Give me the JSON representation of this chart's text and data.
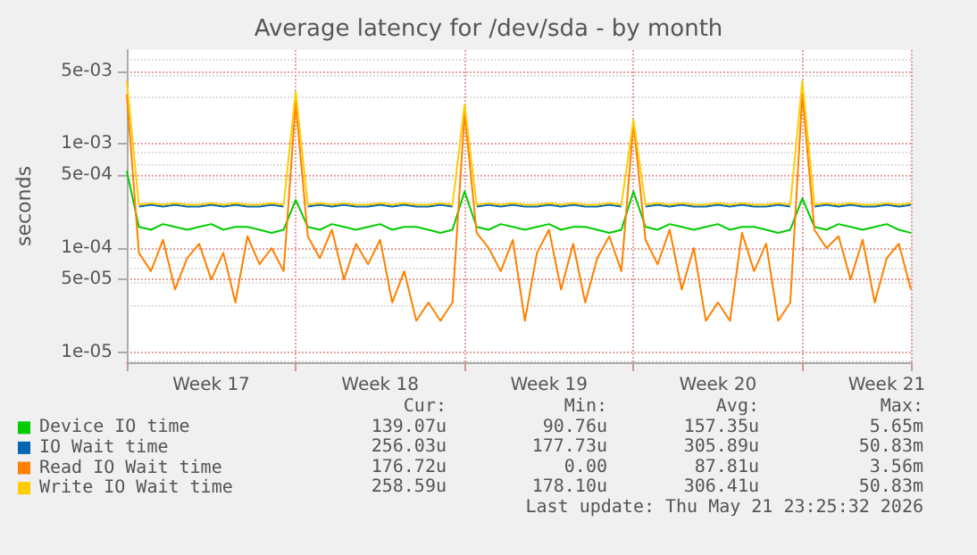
{
  "chart_data": {
    "type": "line",
    "title": "Average latency for /dev/sda - by month",
    "ylabel": "seconds",
    "categories": [
      null,
      null,
      null,
      null,
      null,
      null,
      null,
      "Week 17",
      null,
      null,
      null,
      null,
      null,
      null,
      null,
      null,
      null,
      null,
      null,
      null,
      null,
      "Week 18",
      null,
      null,
      null,
      null,
      null,
      null,
      null,
      null,
      null,
      null,
      null,
      null,
      null,
      "Week 19",
      null,
      null,
      null,
      null,
      null,
      null,
      null,
      null,
      null,
      null,
      null,
      null,
      null,
      "Week 20",
      null,
      null,
      null,
      null,
      null,
      null,
      null,
      null,
      null,
      null,
      null,
      null,
      null,
      "Week 21",
      null,
      null
    ],
    "series": [
      {
        "name": "Device IO time",
        "color": "#00cc00",
        "values": [
          0.00055,
          0.00016,
          0.00015,
          0.00017,
          0.00016,
          0.00015,
          0.00016,
          0.00017,
          0.00015,
          0.00016,
          0.00016,
          0.00015,
          0.00014,
          0.00015,
          0.00029,
          0.00016,
          0.00015,
          0.00017,
          0.00016,
          0.00015,
          0.00016,
          0.00017,
          0.00015,
          0.00016,
          0.00016,
          0.00015,
          0.00014,
          0.00015,
          0.00035,
          0.00016,
          0.00015,
          0.00017,
          0.00016,
          0.00015,
          0.00016,
          0.00017,
          0.00015,
          0.00016,
          0.00016,
          0.00015,
          0.00014,
          0.00015,
          0.00035,
          0.00016,
          0.00015,
          0.00017,
          0.00016,
          0.00015,
          0.00016,
          0.00017,
          0.00015,
          0.00016,
          0.00016,
          0.00015,
          0.00014,
          0.00015,
          0.0003,
          0.00016,
          0.00015,
          0.00017,
          0.00016,
          0.00015,
          0.00016,
          0.00017,
          0.00015,
          0.00014
        ]
      },
      {
        "name": "IO Wait time",
        "color": "#0066b3",
        "values": [
          null,
          0.00025,
          0.00026,
          0.00025,
          0.00026,
          0.00025,
          0.00025,
          0.00026,
          0.00025,
          0.00026,
          0.00025,
          0.00025,
          0.00026,
          0.00025,
          null,
          0.00025,
          0.00026,
          0.00025,
          0.00026,
          0.00025,
          0.00025,
          0.00026,
          0.00025,
          0.00026,
          0.00025,
          0.00025,
          0.00026,
          0.00025,
          null,
          0.00025,
          0.00026,
          0.00025,
          0.00026,
          0.00025,
          0.00025,
          0.00026,
          0.00025,
          0.00026,
          0.00025,
          0.00025,
          0.00026,
          0.00025,
          null,
          0.00025,
          0.00026,
          0.00025,
          0.00026,
          0.00025,
          0.00025,
          0.00026,
          0.00025,
          0.00026,
          0.00025,
          0.00025,
          0.00026,
          0.00025,
          null,
          0.00025,
          0.00026,
          0.00025,
          0.00026,
          0.00025,
          0.00025,
          0.00026,
          0.00025,
          0.00026
        ]
      },
      {
        "name": "Read IO Wait time",
        "color": "#ff8000",
        "values": [
          0.003,
          9e-05,
          6e-05,
          0.00012,
          4e-05,
          8e-05,
          0.00011,
          5e-05,
          9e-05,
          3e-05,
          0.00013,
          7e-05,
          0.0001,
          6e-05,
          0.0025,
          0.00013,
          8e-05,
          0.00015,
          5e-05,
          0.00011,
          7e-05,
          0.00012,
          3e-05,
          6e-05,
          2e-05,
          3e-05,
          2e-05,
          3e-05,
          0.002,
          0.00014,
          0.0001,
          6e-05,
          0.00012,
          2e-05,
          9e-05,
          0.00015,
          4e-05,
          0.00011,
          3e-05,
          8e-05,
          0.00013,
          6e-05,
          0.0016,
          0.00012,
          7e-05,
          0.00015,
          4e-05,
          0.0001,
          2e-05,
          3e-05,
          2e-05,
          0.00014,
          6e-05,
          0.00011,
          2e-05,
          3e-05,
          0.003,
          0.00015,
          0.0001,
          0.00013,
          5e-05,
          0.00012,
          3e-05,
          8e-05,
          0.00011,
          4e-05
        ]
      },
      {
        "name": "Write IO Wait time",
        "color": "#ffcc00",
        "values": [
          0.004,
          0.00026,
          0.00027,
          0.00026,
          0.00027,
          0.00026,
          0.00026,
          0.00027,
          0.00026,
          0.00027,
          0.00026,
          0.00026,
          0.00027,
          0.00026,
          0.0032,
          0.00026,
          0.00027,
          0.00026,
          0.00027,
          0.00026,
          0.00026,
          0.00027,
          0.00026,
          0.00027,
          0.00026,
          0.00026,
          0.00027,
          0.00026,
          0.0024,
          0.00026,
          0.00027,
          0.00026,
          0.00027,
          0.00026,
          0.00026,
          0.00027,
          0.00026,
          0.00027,
          0.00026,
          0.00026,
          0.00027,
          0.00026,
          0.0017,
          0.00026,
          0.00027,
          0.00026,
          0.00027,
          0.00026,
          0.00026,
          0.00027,
          0.00026,
          0.00027,
          0.00026,
          0.00026,
          0.00027,
          0.00026,
          0.004,
          0.00026,
          0.00027,
          0.00026,
          0.00027,
          0.00026,
          0.00026,
          0.00027,
          0.00026,
          0.00027
        ]
      }
    ],
    "ylim": [
      8e-06,
      0.008
    ],
    "yticks": [
      {
        "value": 1e-05,
        "label": "1e-05"
      },
      {
        "value": 5e-05,
        "label": "5e-05"
      },
      {
        "value": 0.0001,
        "label": "1e-04"
      },
      {
        "value": 0.0005,
        "label": "5e-04"
      },
      {
        "value": 0.001,
        "label": "1e-03"
      },
      {
        "value": 0.005,
        "label": "5e-03"
      }
    ],
    "log": "y",
    "grid": true,
    "legend": "bottom left",
    "marker": "none",
    "line_style": "solid",
    "annotations": [
      "Cur:",
      "Min:",
      "Avg:",
      "Max:",
      "139.07u",
      "90.76u",
      "157.35u",
      "5.65m",
      "256.03u",
      "177.73u",
      "305.89u",
      "50.83m",
      "176.72u",
      "0.00",
      "87.81u",
      "3.56m",
      "258.59u",
      "178.10u",
      "306.41u",
      "50.83m",
      "Last update: Thu May 21 23:25:32 2026"
    ]
  }
}
